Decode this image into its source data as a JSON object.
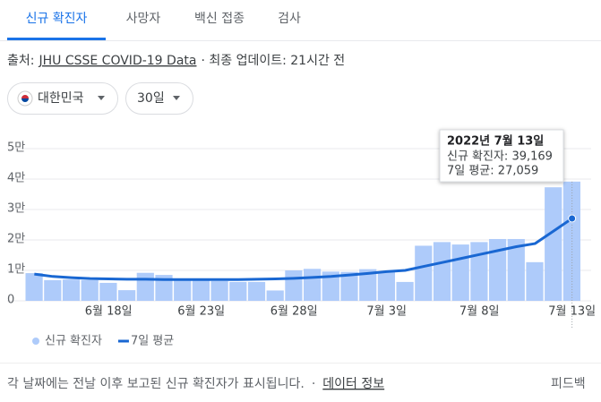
{
  "tabs": [
    "신규 확진자",
    "사망자",
    "백신 접종",
    "검사"
  ],
  "source": {
    "label": "출처:",
    "link": "JHU CSSE COVID-19 Data",
    "updated": "· 최종 업데이트: 21시간 전"
  },
  "filters": [
    "대한민국",
    "30일"
  ],
  "chart_data": {
    "type": "bar",
    "categories": [
      null,
      null,
      null,
      null,
      "6월 18일",
      null,
      null,
      null,
      null,
      "6월 23일",
      null,
      null,
      null,
      null,
      "6월 28일",
      null,
      null,
      null,
      null,
      "7월 3일",
      null,
      null,
      null,
      null,
      "7월 8일",
      null,
      null,
      null,
      null,
      "7월 13일"
    ],
    "series": [
      {
        "name": "신규 확진자",
        "type": "bar",
        "color": "#aecbfa",
        "values": [
          9100,
          6800,
          7000,
          6800,
          5900,
          3500,
          9200,
          8500,
          6800,
          6800,
          6500,
          6200,
          6200,
          3400,
          10000,
          10500,
          9600,
          9500,
          10400,
          9500,
          6200,
          18100,
          19300,
          18500,
          19300,
          20300,
          20300,
          12700,
          37300,
          39169
        ]
      },
      {
        "name": "7일 평균",
        "type": "line",
        "color": "#1967d2",
        "values": [
          8800,
          8000,
          7600,
          7300,
          7200,
          7100,
          7100,
          7000,
          7000,
          7000,
          7000,
          7000,
          7100,
          7200,
          7400,
          7700,
          8000,
          8500,
          9000,
          9600,
          10000,
          11300,
          12600,
          13900,
          15200,
          16500,
          17800,
          18800,
          22900,
          27059
        ]
      }
    ],
    "ylim": [
      0,
      50000
    ],
    "yticks": [
      0,
      {
        "value": 10000,
        "label": "1만"
      },
      {
        "value": 20000,
        "label": "2만"
      },
      {
        "value": 30000,
        "label": "3만"
      },
      {
        "value": 40000,
        "label": "4만"
      },
      {
        "value": 50000,
        "label": "5만"
      }
    ],
    "grid": true,
    "tooltip": {
      "title": "2022년 7월 13일",
      "lines": [
        "신규 확진자: 39,169",
        "7일 평균: 27,059"
      ]
    }
  },
  "footer": {
    "note": "각 날짜에는 전날 이후 보고된 신규 확진자가 표시됩니다.",
    "separator": "·",
    "link": "데이터 정보",
    "feedback": "피드백"
  }
}
